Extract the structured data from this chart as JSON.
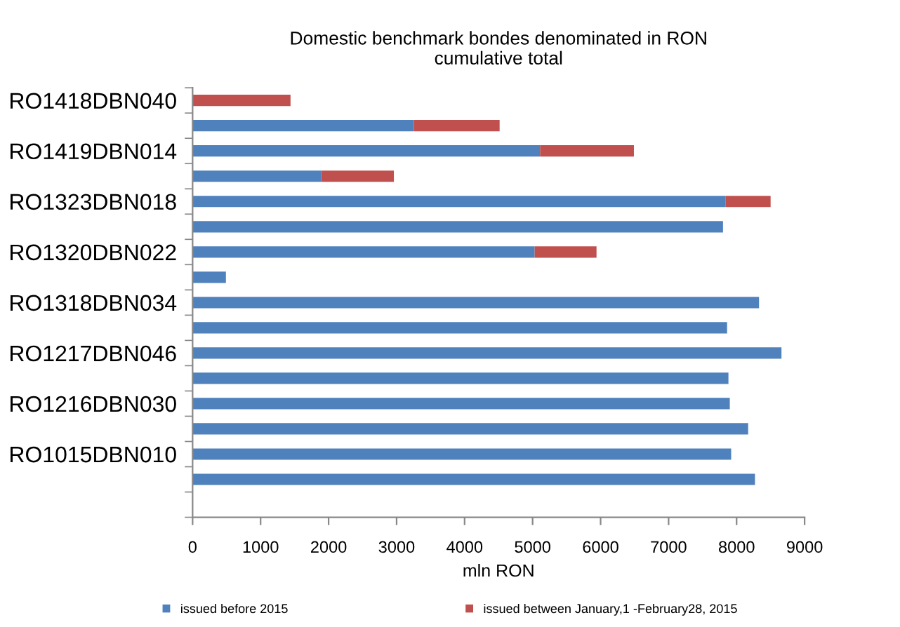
{
  "chart_data": {
    "type": "bar",
    "orientation": "horizontal",
    "stacked": true,
    "title": "Domestic benchmark bondes denominated in RON\ncumulative total",
    "xlabel": "mln RON",
    "categories": [
      "RO1418DBN040",
      null,
      "RO1419DBN014",
      null,
      "RO1323DBN018",
      null,
      "RO1320DBN022",
      null,
      "RO1318DBN034",
      null,
      "RO1217DBN046",
      null,
      "RO1216DBN030",
      null,
      "RO1015DBN010",
      null,
      null
    ],
    "series": [
      {
        "name": "issued before 2015",
        "color": "#4f81bd",
        "values": [
          0,
          3255,
          5110,
          1890,
          7840,
          7800,
          5030,
          490,
          8330,
          7860,
          8660,
          7880,
          7900,
          8170,
          7920,
          8270,
          null
        ]
      },
      {
        "name": "issued between January,1 -February28, 2015",
        "color": "#c0504d",
        "values": [
          1440,
          1260,
          1380,
          1070,
          660,
          null,
          910,
          null,
          null,
          null,
          null,
          null,
          null,
          null,
          null,
          null,
          null
        ]
      }
    ],
    "xlim": [
      0,
      9000
    ],
    "xticks": [
      0,
      1000,
      2000,
      3000,
      4000,
      5000,
      6000,
      7000,
      8000,
      9000
    ],
    "grid": false,
    "legend": "bottom"
  }
}
